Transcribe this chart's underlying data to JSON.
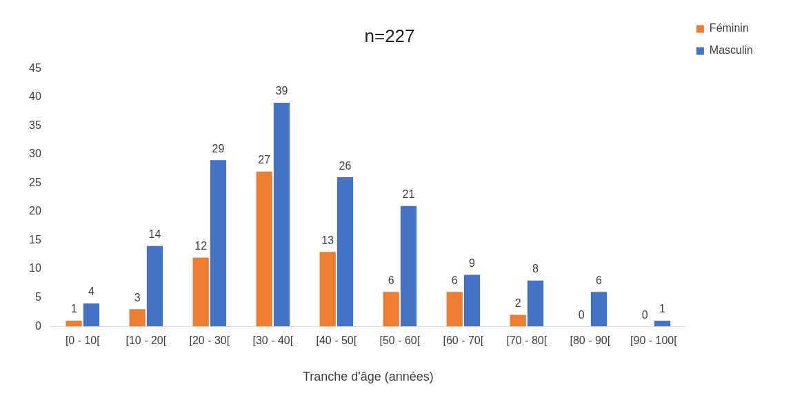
{
  "chart_data": {
    "type": "bar",
    "title": "n=227",
    "xlabel": "Tranche d'âge (années)",
    "categories": [
      "[0 - 10[",
      "[10 - 20[",
      "[20 - 30[",
      "[30 - 40[",
      "[40 - 50[",
      "[50 - 60[",
      "[60 - 70[",
      "[70 - 80[",
      "[80 - 90[",
      "[90 - 100["
    ],
    "series": [
      {
        "name": "Féminin",
        "color": "#ed7d31",
        "values": [
          1,
          3,
          12,
          27,
          13,
          6,
          6,
          2,
          0,
          0
        ]
      },
      {
        "name": "Masculin",
        "color": "#4472c4",
        "values": [
          4,
          14,
          29,
          39,
          26,
          21,
          9,
          8,
          6,
          1
        ]
      }
    ],
    "ylim": [
      0,
      45
    ],
    "yticks": [
      0,
      5,
      10,
      15,
      20,
      25,
      30,
      35,
      40,
      45
    ],
    "grid": false,
    "legend": "top right",
    "data_labels": true
  }
}
